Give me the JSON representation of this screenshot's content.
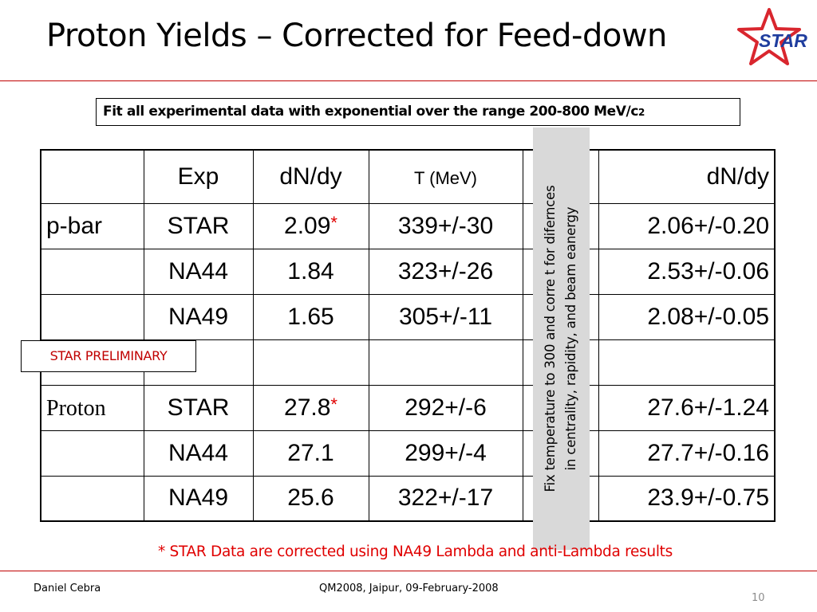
{
  "title": "Proton Yields – Corrected for Feed-down",
  "logo": {
    "text": "STAR",
    "colors": {
      "star": "#d9262e",
      "text": "#1f3d9e"
    }
  },
  "note_box": {
    "main": "Fit all experimental data with exponential over the range 200-800 MeV/c",
    "sub": "2"
  },
  "table": {
    "headers": [
      "",
      "Exp",
      "dN/dy",
      "T (MeV)",
      "",
      "dN/dy"
    ],
    "rows": [
      [
        "p-bar",
        "STAR",
        "2.09",
        "339+/-30",
        "",
        "2.06+/-0.20"
      ],
      [
        "",
        "NA44",
        "1.84",
        "323+/-26",
        "",
        "2.53+/-0.06"
      ],
      [
        "",
        "NA49",
        "1.65",
        "305+/-11",
        "",
        "2.08+/-0.05"
      ],
      [
        "",
        "",
        "",
        "",
        "",
        ""
      ],
      [
        "Proton",
        "STAR",
        "27.8",
        "292+/-6",
        "",
        "27.6+/-1.24"
      ],
      [
        "",
        "NA44",
        "27.1",
        "299+/-4",
        "",
        "27.7+/-0.16"
      ],
      [
        "",
        "NA49",
        "25.6",
        "322+/-17",
        "",
        "23.9+/-0.75"
      ]
    ],
    "star_marker": "*"
  },
  "preliminary_label": "STAR PRELIMINARY",
  "vertical_note": {
    "line1": "Fix temperature to 300 and corre t for difernces",
    "line2": "in centrality, rapidity, and beam eanergy"
  },
  "footnote": "* STAR Data are corrected using NA49 Lambda and anti-Lambda results",
  "footer": {
    "author": "Daniel Cebra",
    "conference": "QM2008, Jaipur, 09-February-2008",
    "page": "10"
  },
  "colors": {
    "accent_red": "#c00000",
    "gray_band": "#d9d9d9"
  }
}
